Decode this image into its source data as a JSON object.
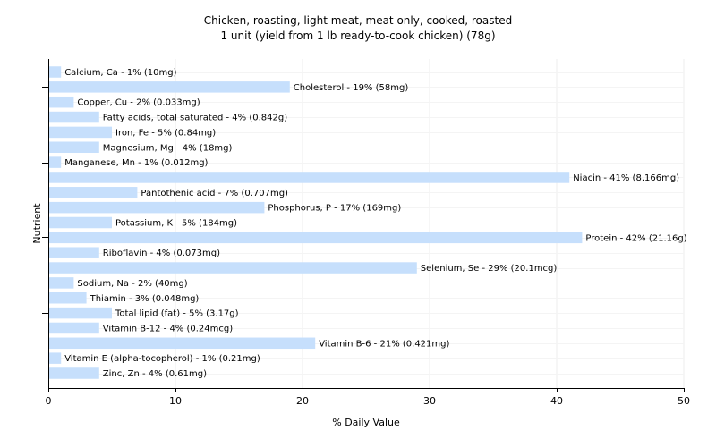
{
  "chart_data": {
    "type": "bar",
    "orientation": "horizontal",
    "title": "Chicken, roasting, light meat, meat only, cooked, roasted",
    "subtitle": "1 unit (yield from 1 lb ready-to-cook chicken) (78g)",
    "xlabel": "% Daily Value",
    "ylabel": "Nutrient",
    "xlim": [
      0,
      50
    ],
    "xticks": [
      "0",
      "10",
      "20",
      "30",
      "40",
      "50"
    ],
    "grid": true,
    "bar_color": "#c6dffc",
    "categories": [
      "Calcium, Ca",
      "Cholesterol",
      "Copper, Cu",
      "Fatty acids, total saturated",
      "Iron, Fe",
      "Magnesium, Mg",
      "Manganese, Mn",
      "Niacin",
      "Pantothenic acid",
      "Phosphorus, P",
      "Potassium, K",
      "Protein",
      "Riboflavin",
      "Selenium, Se",
      "Sodium, Na",
      "Thiamin",
      "Total lipid (fat)",
      "Vitamin B-12",
      "Vitamin B-6",
      "Vitamin E (alpha-tocopherol)",
      "Zinc, Zn"
    ],
    "values": [
      1,
      19,
      2,
      4,
      5,
      4,
      1,
      41,
      7,
      17,
      5,
      42,
      4,
      29,
      2,
      3,
      5,
      4,
      21,
      1,
      4
    ],
    "labels": [
      "Calcium, Ca - 1% (10mg)",
      "Cholesterol - 19% (58mg)",
      "Copper, Cu - 2% (0.033mg)",
      "Fatty acids, total saturated - 4% (0.842g)",
      "Iron, Fe - 5% (0.84mg)",
      "Magnesium, Mg - 4% (18mg)",
      "Manganese, Mn - 1% (0.012mg)",
      "Niacin - 41% (8.166mg)",
      "Pantothenic acid - 7% (0.707mg)",
      "Phosphorus, P - 17% (169mg)",
      "Potassium, K - 5% (184mg)",
      "Protein - 42% (21.16g)",
      "Riboflavin - 4% (0.073mg)",
      "Selenium, Se - 29% (20.1mcg)",
      "Sodium, Na - 2% (40mg)",
      "Thiamin - 3% (0.048mg)",
      "Total lipid (fat) - 5% (3.17g)",
      "Vitamin B-12 - 4% (0.24mcg)",
      "Vitamin B-6 - 21% (0.421mg)",
      "Vitamin E (alpha-tocopherol) - 1% (0.21mg)",
      "Zinc, Zn - 4% (0.61mg)"
    ]
  }
}
